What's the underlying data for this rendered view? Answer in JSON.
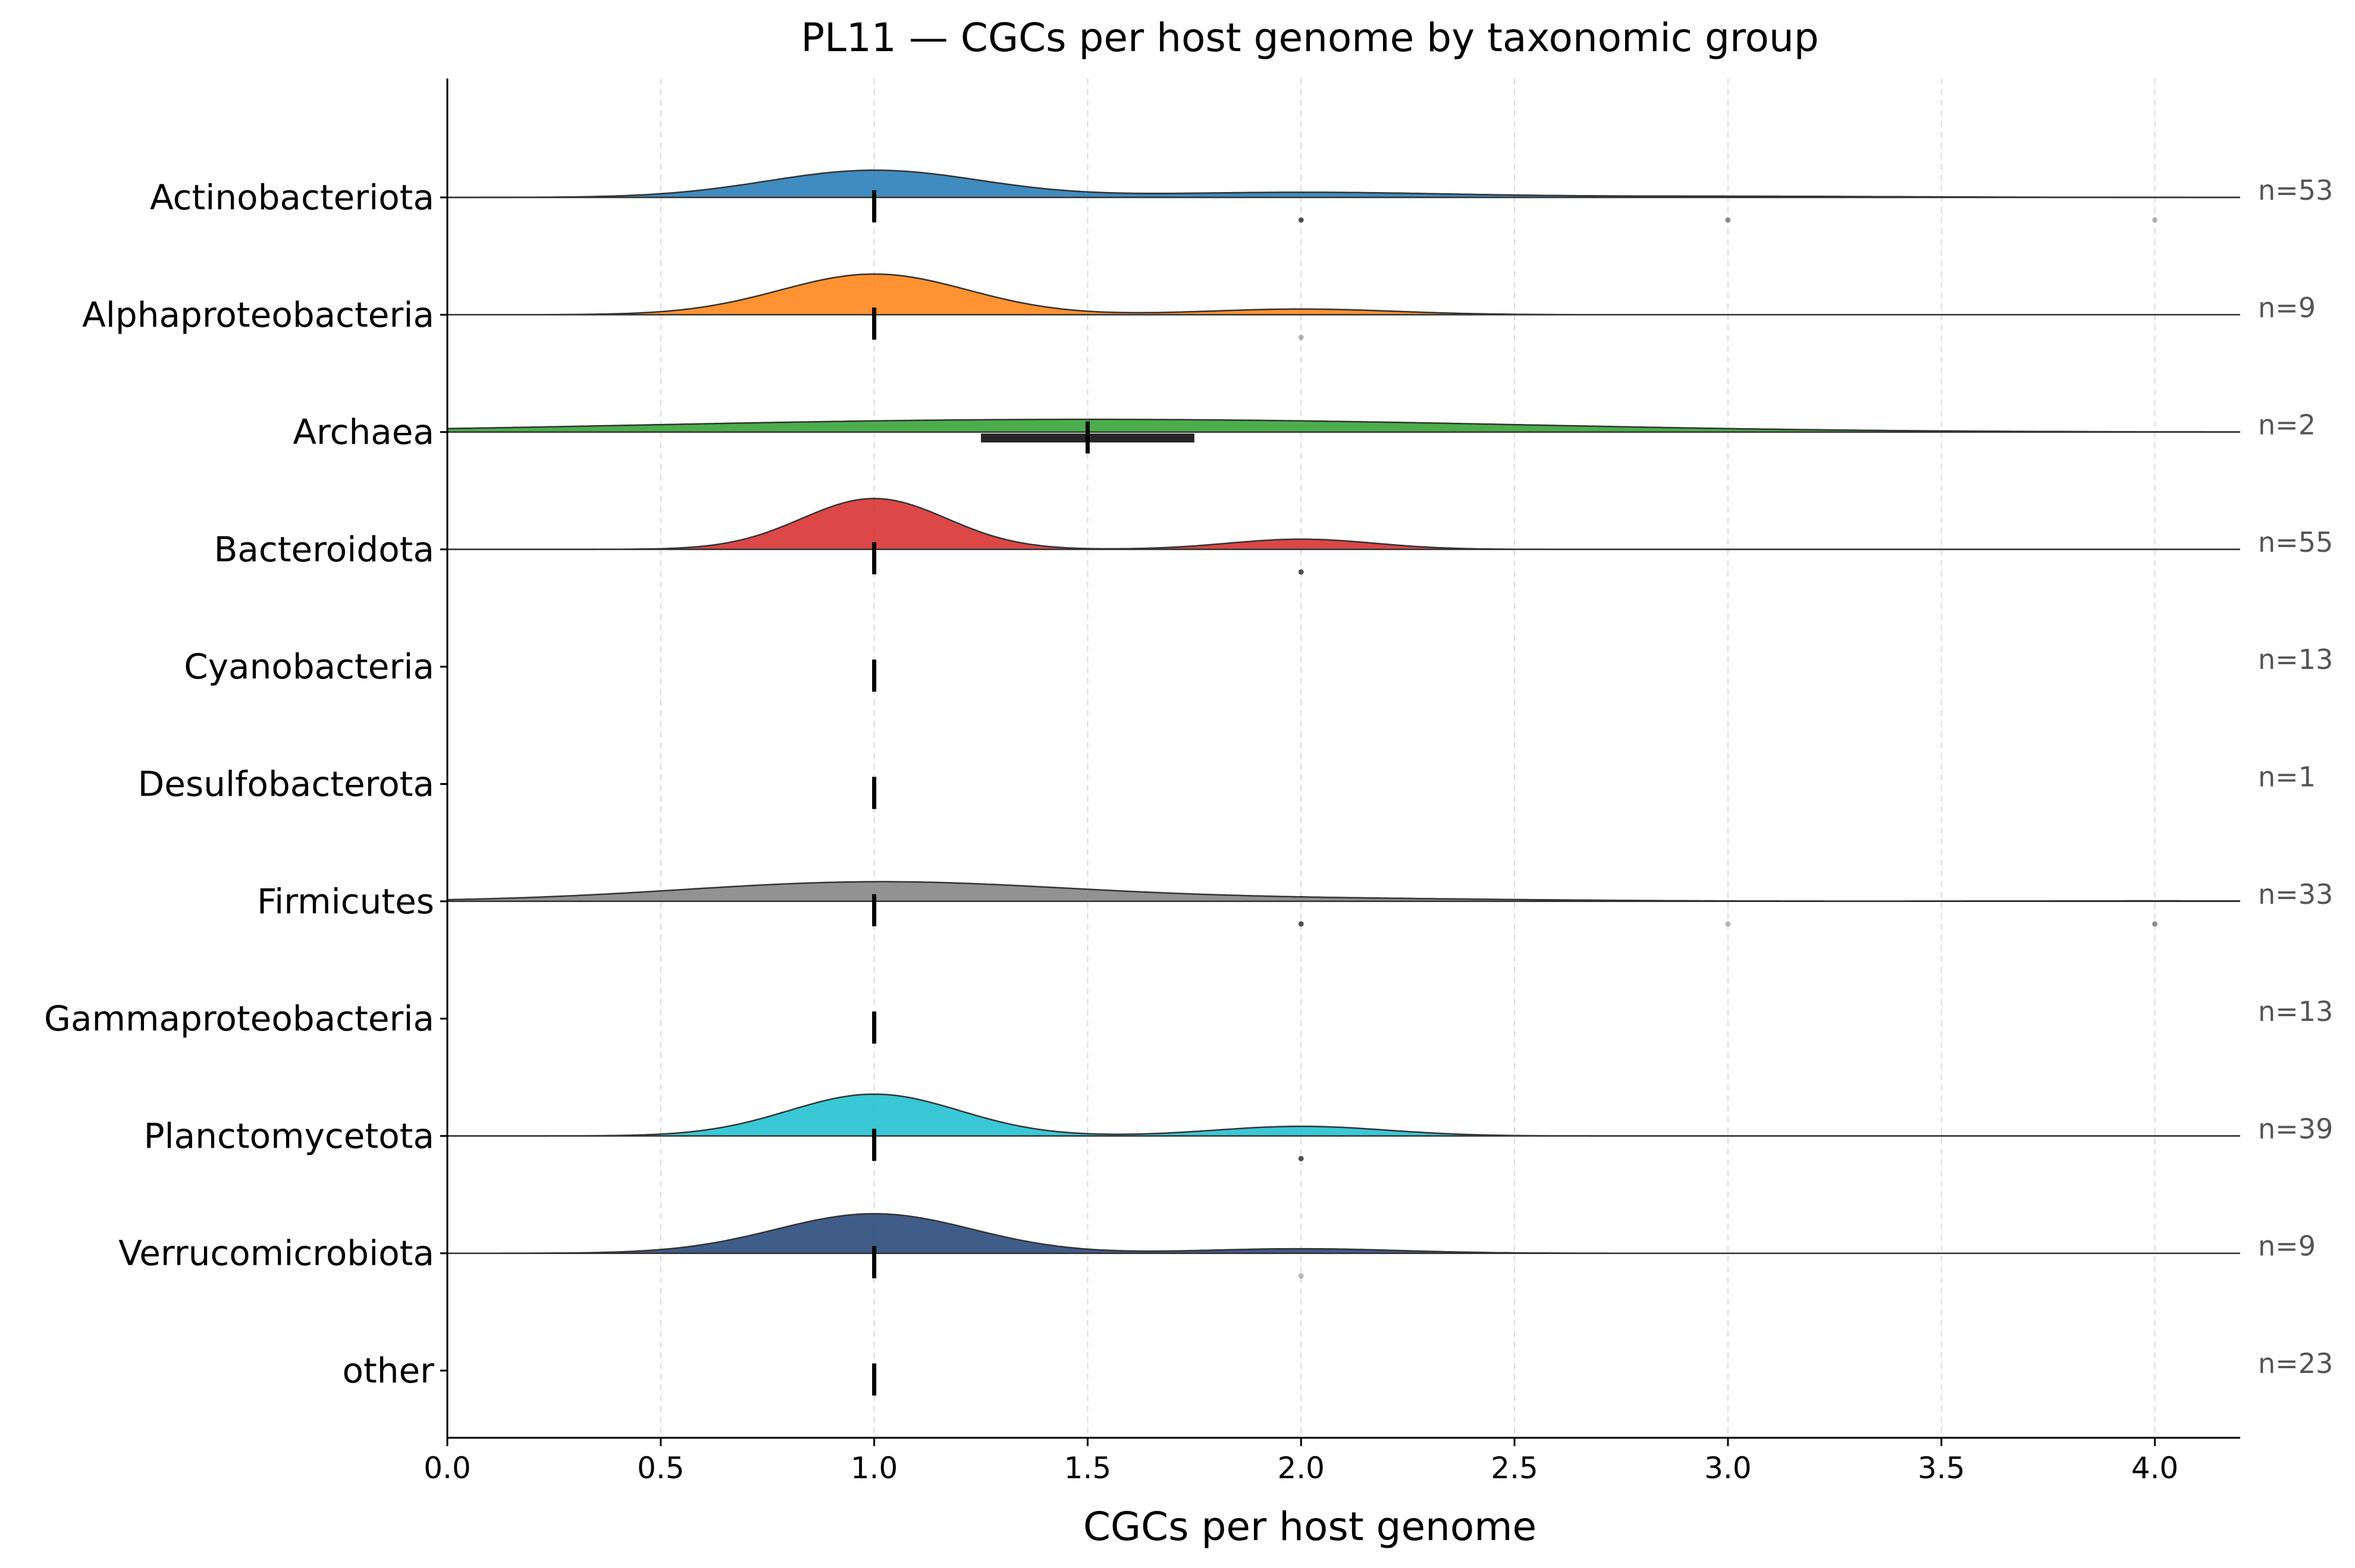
{
  "chart_data": {
    "type": "ridgeline",
    "title": "PL11 — CGCs per host genome by taxonomic group",
    "xlabel": "CGCs per host genome",
    "ylabel": "",
    "xlim": [
      0.0,
      4.2
    ],
    "x_ticks": [
      "0.0",
      "0.5",
      "1.0",
      "1.5",
      "2.0",
      "2.5",
      "3.0",
      "3.5",
      "4.0"
    ],
    "x_tick_values": [
      0.0,
      0.5,
      1.0,
      1.5,
      2.0,
      2.5,
      3.0,
      3.5,
      4.0
    ],
    "grid": "vertical dashed",
    "groups": [
      {
        "name": "Actinobacteriota",
        "n_label": "n=53",
        "color": "#1f77b4",
        "density": true,
        "modes": [
          {
            "x": 1.0,
            "h": 0.24,
            "sd": 0.25
          },
          {
            "x": 2.0,
            "h": 0.045,
            "sd": 0.35
          },
          {
            "x": 3.0,
            "h": 0.01,
            "sd": 0.4
          }
        ],
        "median": 1.0,
        "iqr": null,
        "outliers": [
          {
            "x": 2.0,
            "a": 0.85
          },
          {
            "x": 3.0,
            "a": 0.55
          },
          {
            "x": 4.0,
            "a": 0.35
          }
        ]
      },
      {
        "name": "Alphaproteobacteria",
        "n_label": "n=9",
        "color": "#ff7f0e",
        "density": true,
        "modes": [
          {
            "x": 1.0,
            "h": 0.36,
            "sd": 0.22
          },
          {
            "x": 2.0,
            "h": 0.05,
            "sd": 0.22
          }
        ],
        "median": 1.0,
        "iqr": null,
        "outliers": [
          {
            "x": 2.0,
            "a": 0.35
          }
        ]
      },
      {
        "name": "Archaea",
        "n_label": "n=2",
        "color": "#2ca02c",
        "density": true,
        "modes": [
          {
            "x": 1.0,
            "h": 0.07,
            "sd": 0.75
          },
          {
            "x": 2.0,
            "h": 0.07,
            "sd": 0.75
          }
        ],
        "median": 1.5,
        "iqr": [
          1.25,
          1.75
        ],
        "outliers": []
      },
      {
        "name": "Bacteroidota",
        "n_label": "n=55",
        "color": "#d62728",
        "density": true,
        "modes": [
          {
            "x": 1.0,
            "h": 0.45,
            "sd": 0.17
          },
          {
            "x": 2.0,
            "h": 0.09,
            "sd": 0.17
          }
        ],
        "median": 1.0,
        "iqr": null,
        "outliers": [
          {
            "x": 2.0,
            "a": 0.85
          }
        ]
      },
      {
        "name": "Cyanobacteria",
        "n_label": "n=13",
        "color": null,
        "density": false,
        "modes": [],
        "median": 1.0,
        "iqr": null,
        "outliers": []
      },
      {
        "name": "Desulfobacterota",
        "n_label": "n=1",
        "color": null,
        "density": false,
        "modes": [],
        "median": 1.0,
        "iqr": null,
        "outliers": []
      },
      {
        "name": "Firmicutes",
        "n_label": "n=33",
        "color": "#7f7f7f",
        "density": true,
        "modes": [
          {
            "x": 1.0,
            "h": 0.17,
            "sd": 0.45
          },
          {
            "x": 2.0,
            "h": 0.025,
            "sd": 0.5
          },
          {
            "x": 4.0,
            "h": 0.004,
            "sd": 0.4
          }
        ],
        "median": 1.0,
        "iqr": null,
        "outliers": [
          {
            "x": 2.0,
            "a": 0.85
          },
          {
            "x": 3.0,
            "a": 0.35
          },
          {
            "x": 4.0,
            "a": 0.55
          }
        ]
      },
      {
        "name": "Gammaproteobacteria",
        "n_label": "n=13",
        "color": null,
        "density": false,
        "modes": [],
        "median": 1.0,
        "iqr": null,
        "outliers": []
      },
      {
        "name": "Planctomycetota",
        "n_label": "n=39",
        "color": "#17becf",
        "density": true,
        "modes": [
          {
            "x": 1.0,
            "h": 0.37,
            "sd": 0.2
          },
          {
            "x": 2.0,
            "h": 0.085,
            "sd": 0.2
          }
        ],
        "median": 1.0,
        "iqr": null,
        "outliers": [
          {
            "x": 2.0,
            "a": 0.85
          }
        ]
      },
      {
        "name": "Verrucomicrobiota",
        "n_label": "n=9",
        "color": "#1f3f73",
        "density": true,
        "modes": [
          {
            "x": 1.0,
            "h": 0.35,
            "sd": 0.23
          },
          {
            "x": 2.0,
            "h": 0.04,
            "sd": 0.23
          }
        ],
        "median": 1.0,
        "iqr": null,
        "outliers": [
          {
            "x": 2.0,
            "a": 0.35
          }
        ]
      },
      {
        "name": "other",
        "n_label": "n=23",
        "color": null,
        "density": false,
        "modes": [],
        "median": 1.0,
        "iqr": null,
        "outliers": []
      }
    ]
  }
}
